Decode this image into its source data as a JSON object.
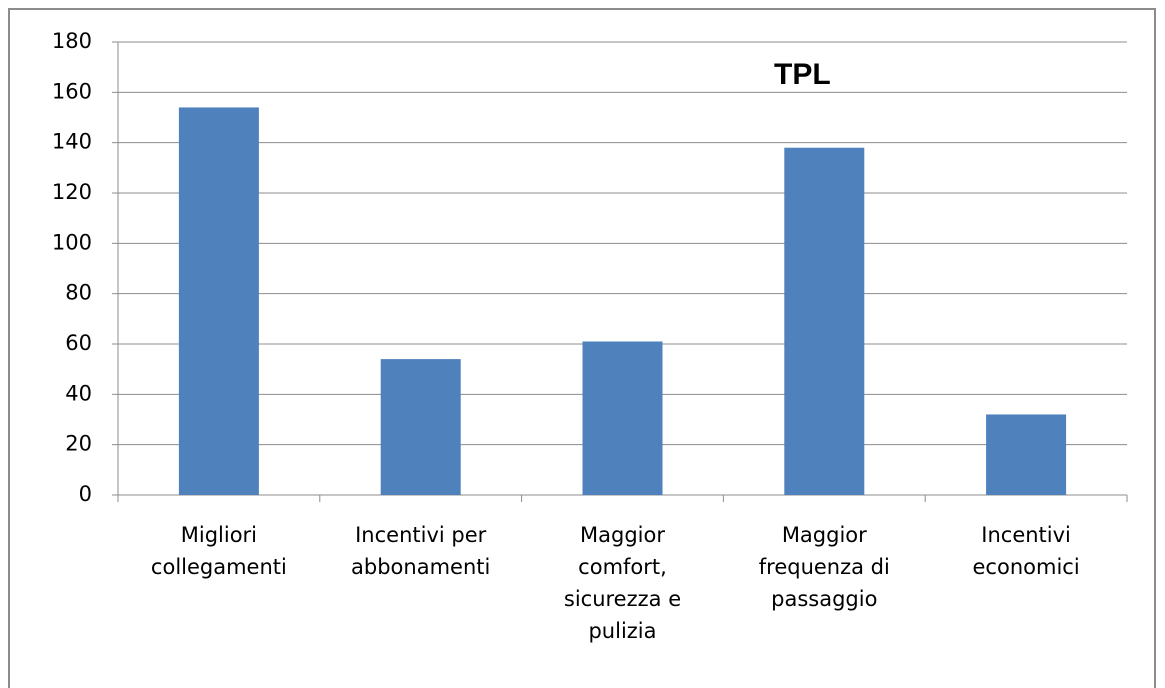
{
  "chart_data": {
    "type": "bar",
    "title": "TPL",
    "categories": [
      "Migliori collegamenti",
      "Incentivi per abbonamenti",
      "Maggior comfort, sicurezza e pulizia",
      "Maggior frequenza di passaggio",
      "Incentivi economici"
    ],
    "values": [
      154,
      54,
      61,
      138,
      32
    ],
    "color": "#4f81bd",
    "ylim": [
      0,
      180
    ],
    "yticks": [
      0,
      20,
      40,
      60,
      80,
      100,
      120,
      140,
      160,
      180
    ],
    "grid": true
  }
}
